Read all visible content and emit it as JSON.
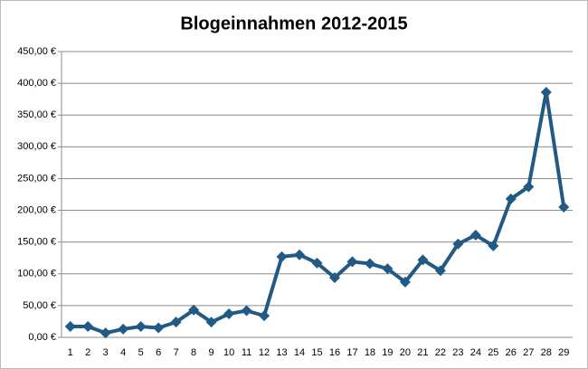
{
  "chart_data": {
    "type": "line",
    "title": "Blogeinnahmen 2012-2015",
    "categories": [
      1,
      2,
      3,
      4,
      5,
      6,
      7,
      8,
      9,
      10,
      11,
      12,
      13,
      14,
      15,
      16,
      17,
      18,
      19,
      20,
      21,
      22,
      23,
      24,
      25,
      26,
      27,
      28,
      29
    ],
    "values": [
      17,
      17,
      7,
      13,
      17,
      15,
      24,
      43,
      24,
      37,
      42,
      34,
      127,
      130,
      117,
      94,
      119,
      116,
      108,
      87,
      122,
      105,
      147,
      161,
      144,
      218,
      237,
      386,
      205
    ],
    "color": "#215a84",
    "ylim": [
      0,
      450
    ],
    "yticks": [
      {
        "value": 0,
        "label": "0,00 €"
      },
      {
        "value": 50,
        "label": "50,00 €"
      },
      {
        "value": 100,
        "label": "100,00 €"
      },
      {
        "value": 150,
        "label": "150,00 €"
      },
      {
        "value": 200,
        "label": "200,00 €"
      },
      {
        "value": 250,
        "label": "250,00 €"
      },
      {
        "value": 300,
        "label": "300,00 €"
      },
      {
        "value": 350,
        "label": "350,00 €"
      },
      {
        "value": 400,
        "label": "400,00 €"
      },
      {
        "value": 450,
        "label": "450,00 €"
      }
    ],
    "grid": true
  }
}
